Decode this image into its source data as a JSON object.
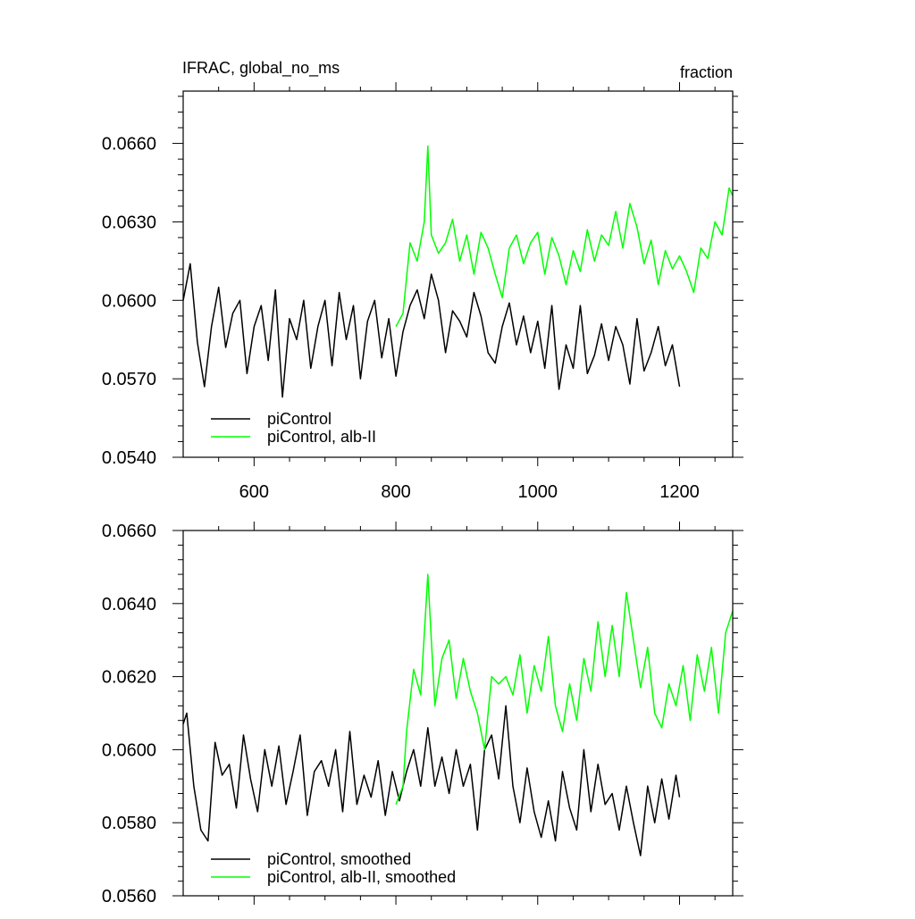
{
  "chart_data": [
    {
      "type": "line",
      "title": "IFRAC, global_no_ms",
      "units": "fraction",
      "xlim": [
        500,
        1275
      ],
      "ylim": [
        0.054,
        0.068
      ],
      "x_ticks": [
        600,
        800,
        1000,
        1200
      ],
      "x_tick_labels": [
        "600",
        "800",
        "1000",
        "1200"
      ],
      "y_ticks": [
        0.054,
        0.057,
        0.06,
        0.063,
        0.066
      ],
      "y_tick_labels": [
        "0.0540",
        "0.0570",
        "0.0600",
        "0.0630",
        "0.0660"
      ],
      "legend_position": "bottom-left",
      "series": [
        {
          "name": "piControl",
          "color": "#000000",
          "x": [
            500,
            510,
            520,
            530,
            540,
            550,
            560,
            570,
            580,
            590,
            600,
            610,
            620,
            630,
            640,
            650,
            660,
            670,
            680,
            690,
            700,
            710,
            720,
            730,
            740,
            750,
            760,
            770,
            780,
            790,
            800,
            810,
            820,
            830,
            840,
            850,
            860,
            870,
            880,
            890,
            900,
            910,
            920,
            930,
            940,
            950,
            960,
            970,
            980,
            990,
            1000,
            1010,
            1020,
            1030,
            1040,
            1050,
            1060,
            1070,
            1080,
            1090,
            1100,
            1110,
            1120,
            1130,
            1140,
            1150,
            1160,
            1170,
            1180,
            1190,
            1200
          ],
          "values": [
            0.06,
            0.0614,
            0.0584,
            0.0567,
            0.059,
            0.0605,
            0.0582,
            0.0595,
            0.06,
            0.0572,
            0.059,
            0.0598,
            0.0577,
            0.0604,
            0.0563,
            0.0593,
            0.0585,
            0.06,
            0.0574,
            0.059,
            0.06,
            0.0575,
            0.0603,
            0.0585,
            0.0598,
            0.057,
            0.0592,
            0.06,
            0.0578,
            0.0593,
            0.0571,
            0.0588,
            0.0598,
            0.0604,
            0.0593,
            0.061,
            0.06,
            0.058,
            0.0596,
            0.0592,
            0.0586,
            0.0603,
            0.0594,
            0.058,
            0.0576,
            0.059,
            0.0599,
            0.0583,
            0.0594,
            0.058,
            0.0592,
            0.0574,
            0.0598,
            0.0566,
            0.0583,
            0.0574,
            0.0598,
            0.0572,
            0.0579,
            0.0591,
            0.0577,
            0.059,
            0.0583,
            0.0568,
            0.0593,
            0.0573,
            0.058,
            0.059,
            0.0575,
            0.0583,
            0.0567
          ]
        },
        {
          "name": "piControl, alb-II",
          "color": "#00ff00",
          "x": [
            800,
            810,
            820,
            830,
            840,
            845,
            850,
            860,
            870,
            880,
            890,
            900,
            910,
            920,
            930,
            940,
            950,
            960,
            970,
            980,
            990,
            1000,
            1010,
            1020,
            1030,
            1040,
            1050,
            1060,
            1070,
            1080,
            1090,
            1100,
            1110,
            1120,
            1130,
            1140,
            1150,
            1160,
            1170,
            1180,
            1190,
            1200,
            1210,
            1220,
            1230,
            1240,
            1250,
            1260,
            1270,
            1275
          ],
          "values": [
            0.059,
            0.0595,
            0.0622,
            0.0615,
            0.063,
            0.0659,
            0.0625,
            0.0618,
            0.0622,
            0.0631,
            0.0615,
            0.0625,
            0.061,
            0.0626,
            0.062,
            0.061,
            0.0601,
            0.062,
            0.0625,
            0.0614,
            0.0622,
            0.0626,
            0.061,
            0.0624,
            0.0617,
            0.0606,
            0.0619,
            0.0611,
            0.0627,
            0.0615,
            0.0625,
            0.0621,
            0.0634,
            0.062,
            0.0637,
            0.0628,
            0.0614,
            0.0623,
            0.0606,
            0.0619,
            0.0612,
            0.0617,
            0.0611,
            0.0603,
            0.062,
            0.0616,
            0.063,
            0.0625,
            0.0643,
            0.064
          ]
        }
      ]
    },
    {
      "type": "line",
      "xlim": [
        500,
        1275
      ],
      "ylim": [
        0.056,
        0.066
      ],
      "x_ticks": [
        600,
        800,
        1000,
        1200
      ],
      "y_ticks": [
        0.056,
        0.058,
        0.06,
        0.062,
        0.064,
        0.066
      ],
      "y_tick_labels": [
        "0.0560",
        "0.0580",
        "0.0600",
        "0.0620",
        "0.0640",
        "0.0660"
      ],
      "legend_position": "bottom-left",
      "series": [
        {
          "name": "piControl, smoothed",
          "color": "#000000",
          "x": [
            500,
            505,
            515,
            525,
            535,
            545,
            555,
            565,
            575,
            585,
            595,
            605,
            615,
            625,
            635,
            645,
            655,
            665,
            675,
            685,
            695,
            705,
            715,
            725,
            735,
            745,
            755,
            765,
            775,
            785,
            795,
            805,
            815,
            825,
            835,
            845,
            855,
            865,
            875,
            885,
            895,
            905,
            915,
            925,
            935,
            945,
            955,
            965,
            975,
            985,
            995,
            1005,
            1015,
            1025,
            1035,
            1045,
            1055,
            1065,
            1075,
            1085,
            1095,
            1105,
            1115,
            1125,
            1135,
            1145,
            1155,
            1165,
            1175,
            1185,
            1195,
            1200
          ],
          "values": [
            0.0607,
            0.061,
            0.059,
            0.0578,
            0.0575,
            0.0602,
            0.0593,
            0.0596,
            0.0584,
            0.0604,
            0.0592,
            0.0583,
            0.06,
            0.059,
            0.0601,
            0.0585,
            0.0594,
            0.0604,
            0.0582,
            0.0594,
            0.0597,
            0.059,
            0.06,
            0.0583,
            0.0605,
            0.0585,
            0.0593,
            0.0587,
            0.0597,
            0.0582,
            0.0594,
            0.0586,
            0.0594,
            0.06,
            0.059,
            0.0606,
            0.059,
            0.0598,
            0.0588,
            0.06,
            0.059,
            0.0596,
            0.0578,
            0.06,
            0.0604,
            0.0592,
            0.0612,
            0.059,
            0.058,
            0.0595,
            0.0583,
            0.0576,
            0.0586,
            0.0575,
            0.0594,
            0.0584,
            0.0578,
            0.06,
            0.0583,
            0.0596,
            0.0585,
            0.0588,
            0.0578,
            0.059,
            0.058,
            0.0571,
            0.059,
            0.058,
            0.0592,
            0.0581,
            0.0593,
            0.0587
          ]
        },
        {
          "name": "piControl, alb-II, smoothed",
          "color": "#00ff00",
          "x": [
            800,
            810,
            815,
            825,
            835,
            845,
            855,
            865,
            875,
            885,
            895,
            905,
            915,
            925,
            935,
            945,
            955,
            965,
            975,
            985,
            995,
            1005,
            1015,
            1025,
            1035,
            1045,
            1055,
            1065,
            1075,
            1085,
            1095,
            1105,
            1115,
            1125,
            1135,
            1145,
            1155,
            1165,
            1175,
            1185,
            1195,
            1205,
            1215,
            1225,
            1235,
            1245,
            1255,
            1265,
            1275
          ],
          "values": [
            0.0585,
            0.059,
            0.0605,
            0.0622,
            0.0615,
            0.0648,
            0.0612,
            0.0625,
            0.063,
            0.0614,
            0.0625,
            0.0616,
            0.061,
            0.06,
            0.062,
            0.0618,
            0.062,
            0.0615,
            0.0626,
            0.061,
            0.0623,
            0.0616,
            0.0631,
            0.0612,
            0.0605,
            0.0618,
            0.0608,
            0.0625,
            0.0616,
            0.0635,
            0.062,
            0.0634,
            0.062,
            0.0643,
            0.063,
            0.0617,
            0.0628,
            0.061,
            0.0606,
            0.0618,
            0.0612,
            0.0623,
            0.0608,
            0.0626,
            0.0616,
            0.0628,
            0.061,
            0.0632,
            0.0638
          ]
        }
      ]
    }
  ]
}
